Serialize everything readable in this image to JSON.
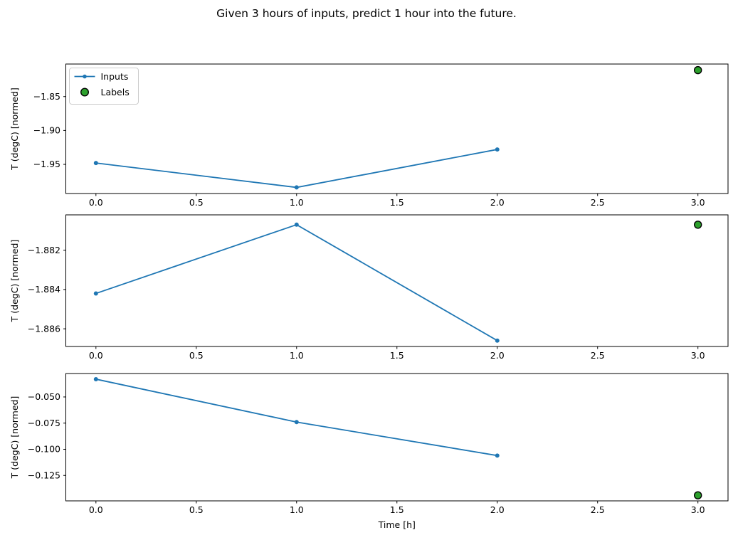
{
  "figure": {
    "title": "Given 3 hours of inputs, predict 1 hour into the future.",
    "background": "#ffffff"
  },
  "chart_data": {
    "type": "line",
    "title": "Given 3 hours of inputs, predict 1 hour into the future.",
    "xlabel": "Time [h]",
    "ylabel": "T (degC) [normed]",
    "legend": {
      "position": "upper-left-of-first-subplot",
      "entries": [
        {
          "label": "Inputs",
          "marker": "line-with-dot",
          "color": "#1f77b4"
        },
        {
          "label": "Labels",
          "marker": "circle",
          "fill": "#2ca02c",
          "edge": "#000000"
        }
      ]
    },
    "x_inputs": [
      0.0,
      1.0,
      2.0
    ],
    "x_label_point": 3.0,
    "xticks": [
      0.0,
      0.5,
      1.0,
      1.5,
      2.0,
      2.5,
      3.0
    ],
    "xtick_labels": [
      "0.0",
      "0.5",
      "1.0",
      "1.5",
      "2.0",
      "2.5",
      "3.0"
    ],
    "xlim": [
      -0.15,
      3.15
    ],
    "grid": false,
    "subplots": [
      {
        "ylabel": "T (degC) [normed]",
        "series": [
          {
            "name": "Inputs",
            "x": [
              0.0,
              1.0,
              2.0
            ],
            "y": [
              -1.948,
              -1.984,
              -1.928
            ]
          },
          {
            "name": "Labels",
            "x": [
              3.0
            ],
            "y": [
              -1.811
            ]
          }
        ],
        "ylim": [
          -1.993,
          -1.802
        ],
        "yticks": [
          -1.85,
          -1.9,
          -1.95
        ],
        "ytick_labels": [
          "−1.85",
          "−1.90",
          "−1.95"
        ],
        "show_legend": true
      },
      {
        "ylabel": "T (degC) [normed]",
        "series": [
          {
            "name": "Inputs",
            "x": [
              0.0,
              1.0,
              2.0
            ],
            "y": [
              -1.8842,
              -1.8807,
              -1.8866
            ]
          },
          {
            "name": "Labels",
            "x": [
              3.0
            ],
            "y": [
              -1.8807
            ]
          }
        ],
        "ylim": [
          -1.8869,
          -1.8802
        ],
        "yticks": [
          -1.882,
          -1.884,
          -1.886
        ],
        "ytick_labels": [
          "−1.882",
          "−1.884",
          "−1.886"
        ],
        "show_legend": false
      },
      {
        "ylabel": "T (degC) [normed]",
        "series": [
          {
            "name": "Inputs",
            "x": [
              0.0,
              1.0,
              2.0
            ],
            "y": [
              -0.033,
              -0.074,
              -0.106
            ]
          },
          {
            "name": "Labels",
            "x": [
              3.0
            ],
            "y": [
              -0.144
            ]
          }
        ],
        "ylim": [
          -0.1493,
          -0.0276
        ],
        "yticks": [
          -0.05,
          -0.075,
          -0.1,
          -0.125
        ],
        "ytick_labels": [
          "−0.050",
          "−0.075",
          "−0.100",
          "−0.125"
        ],
        "show_legend": false
      }
    ]
  }
}
